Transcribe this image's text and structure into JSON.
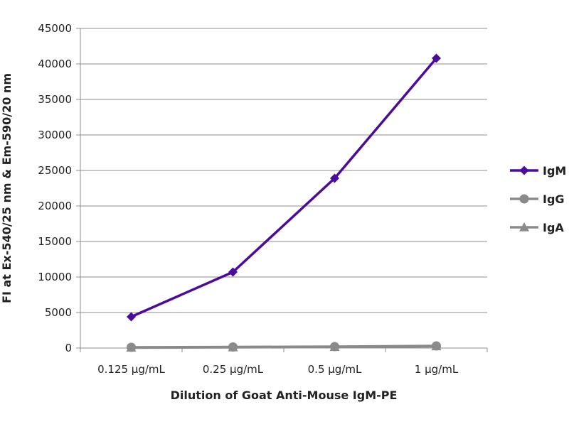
{
  "chart_data": {
    "type": "line",
    "title": "",
    "xlabel": "Dilution of Goat Anti-Mouse IgM-PE",
    "ylabel": "FI at Ex-540/25 nm & Em-590/20 nm",
    "categories": [
      "0.125 µg/mL",
      "0.25 µg/mL",
      "0.5 µg/mL",
      "1 µg/mL"
    ],
    "ylim": [
      0,
      45000
    ],
    "yticks": [
      0,
      5000,
      10000,
      15000,
      20000,
      25000,
      30000,
      35000,
      40000,
      45000
    ],
    "grid": true,
    "legend_position": "right",
    "series": [
      {
        "name": "IgM",
        "values": [
          4400,
          10700,
          23900,
          40800
        ],
        "color": "#4b0c9c",
        "marker": "diamond"
      },
      {
        "name": "IgG",
        "values": [
          100,
          150,
          200,
          300
        ],
        "color": "#8a8a8a",
        "marker": "circle"
      },
      {
        "name": "IgA",
        "values": [
          50,
          100,
          150,
          250
        ],
        "color": "#8a8a8a",
        "marker": "triangle"
      }
    ]
  }
}
